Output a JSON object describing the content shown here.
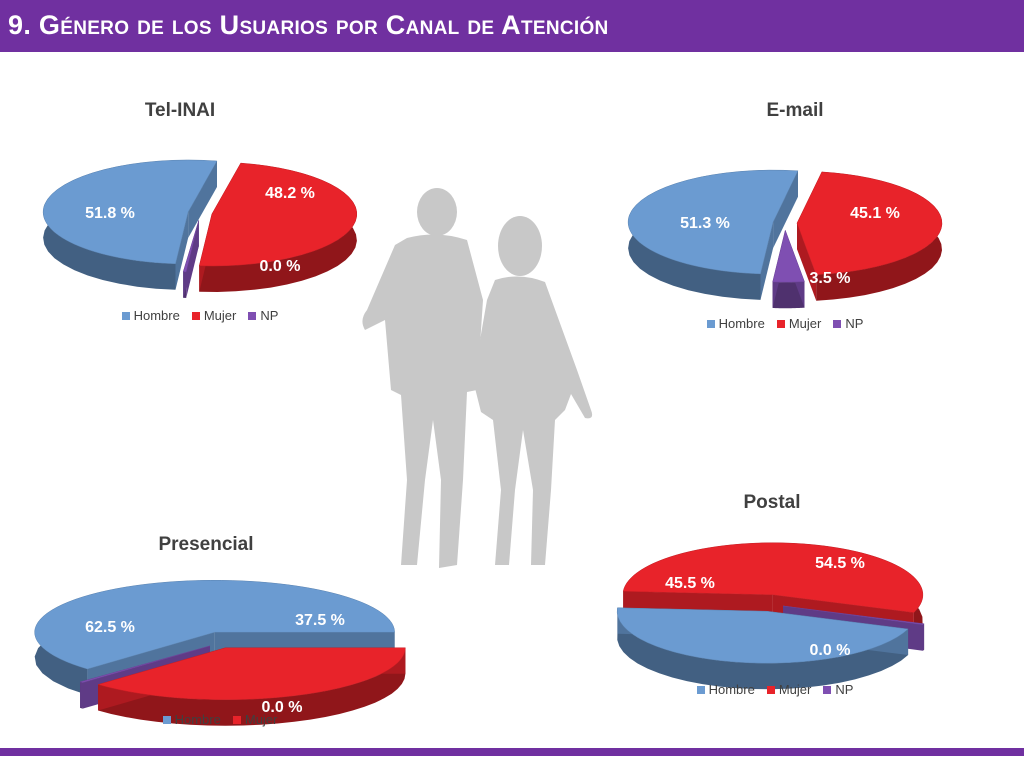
{
  "header": {
    "title": "9. Género de los Usuarios por Canal de Atención"
  },
  "colors": {
    "header": "#7030a0",
    "hombre": "#6b9bd1",
    "mujer": "#e8232a",
    "np": "#7f4fb2"
  },
  "chart_data": [
    {
      "type": "pie",
      "title": "Tel-INAI",
      "categories": [
        "Hombre",
        "Mujer",
        "NP"
      ],
      "values": [
        51.8,
        48.2,
        0.0
      ],
      "data_labels": [
        "51.8 %",
        "48.2 %",
        "0.0 %"
      ],
      "legend": [
        "Hombre",
        "Mujer",
        "NP"
      ],
      "legend_position": "bottom"
    },
    {
      "type": "pie",
      "title": "E-mail",
      "categories": [
        "Hombre",
        "Mujer",
        "NP"
      ],
      "values": [
        51.3,
        45.1,
        3.5
      ],
      "data_labels": [
        "51.3 %",
        "45.1 %",
        "3.5 %"
      ],
      "legend": [
        "Hombre",
        "Mujer",
        "NP"
      ],
      "legend_position": "bottom"
    },
    {
      "type": "pie",
      "title": "Presencial",
      "categories": [
        "Hombre",
        "Mujer",
        "NP"
      ],
      "values": [
        62.5,
        37.5,
        0.0
      ],
      "data_labels": [
        "62.5 %",
        "37.5 %",
        "0.0 %"
      ],
      "legend": [
        "Hombre",
        "Mujer"
      ],
      "legend_position": "bottom"
    },
    {
      "type": "pie",
      "title": "Postal",
      "categories": [
        "Hombre",
        "Mujer",
        "NP"
      ],
      "values": [
        45.5,
        54.5,
        0.0
      ],
      "data_labels": [
        "45.5 %",
        "54.5 %",
        "0.0 %"
      ],
      "legend": [
        "Hombre",
        "Mujer",
        "NP"
      ],
      "legend_position": "bottom"
    }
  ]
}
